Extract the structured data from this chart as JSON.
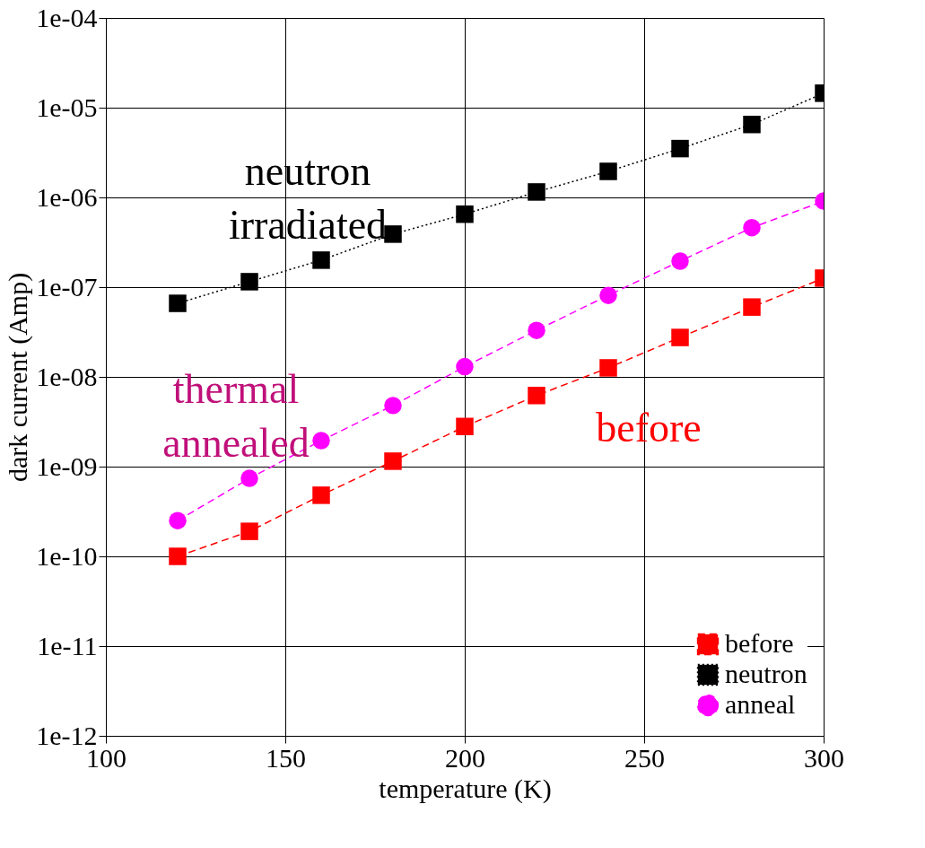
{
  "chart_data": {
    "type": "line",
    "xlabel": "temperature (K)",
    "ylabel": "dark current (Amp)",
    "x": [
      120,
      140,
      160,
      180,
      200,
      220,
      240,
      260,
      280,
      300
    ],
    "series": [
      {
        "name": "before",
        "color": "#ff0000",
        "marker": "square",
        "line_style": "dashed",
        "values": [
          1e-10,
          1.9e-10,
          4.8e-10,
          1.15e-09,
          2.8e-09,
          6.2e-09,
          1.26e-08,
          2.75e-08,
          6e-08,
          1.26e-07
        ]
      },
      {
        "name": "neutron",
        "color": "#000000",
        "marker": "square",
        "line_style": "dotted",
        "values": [
          6.6e-08,
          1.15e-07,
          2e-07,
          3.9e-07,
          6.5e-07,
          1.15e-06,
          1.95e-06,
          3.5e-06,
          6.5e-06,
          1.45e-05
        ]
      },
      {
        "name": "anneal",
        "color": "#ff00ff",
        "marker": "circle",
        "line_style": "dashed",
        "values": [
          2.5e-10,
          7.4e-10,
          1.95e-09,
          4.8e-09,
          1.3e-08,
          3.3e-08,
          8.1e-08,
          1.95e-07,
          4.6e-07,
          9.1e-07
        ]
      }
    ],
    "annotations": [
      "neutron\nirradiated",
      "thermal\nannealed",
      "before"
    ],
    "xlim": [
      100,
      300
    ],
    "xticks": [
      100,
      150,
      200,
      250,
      300
    ],
    "ylim": [
      1e-12,
      0.0001
    ],
    "yticks": [
      {
        "value": 1e-12,
        "label": "1e-12"
      },
      {
        "value": 1e-11,
        "label": "1e-11"
      },
      {
        "value": 1e-10,
        "label": "1e-10"
      },
      {
        "value": 1e-09,
        "label": "1e-09"
      },
      {
        "value": 1e-08,
        "label": "1e-08"
      },
      {
        "value": 1e-07,
        "label": "1e-07"
      },
      {
        "value": 1e-06,
        "label": "1e-06"
      },
      {
        "value": 1e-05,
        "label": "1e-05"
      },
      {
        "value": 0.0001,
        "label": "1e-04"
      }
    ],
    "log": "y",
    "grid": true,
    "legend": "bottom right"
  }
}
